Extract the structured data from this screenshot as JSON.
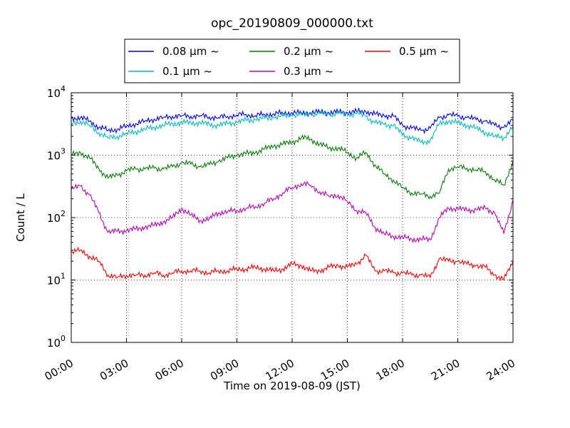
{
  "chart_data": {
    "type": "line",
    "title": "opc_20190809_000000.txt",
    "xlabel": "Time on 2019-08-09 (JST)",
    "ylabel": "Count / L",
    "y_scale": "log",
    "ylim": [
      1,
      10000
    ],
    "y_ticks": [
      {
        "value": 1,
        "base": "10",
        "exp": "0"
      },
      {
        "value": 10,
        "base": "10",
        "exp": "1"
      },
      {
        "value": 100,
        "base": "10",
        "exp": "2"
      },
      {
        "value": 1000,
        "base": "10",
        "exp": "3"
      },
      {
        "value": 10000,
        "base": "10",
        "exp": "4"
      }
    ],
    "xlim": [
      "00:00",
      "24:00"
    ],
    "x_ticks": [
      "00:00",
      "03:00",
      "06:00",
      "09:00",
      "12:00",
      "15:00",
      "18:00",
      "21:00",
      "24:00"
    ],
    "grid": true,
    "legend_position": "top-center",
    "series": [
      {
        "name": "0.08 μm ~",
        "color": "#0000ff",
        "x": [
          "00:00",
          "00:30",
          "01:00",
          "01:30",
          "02:00",
          "02:30",
          "03:00",
          "03:30",
          "04:00",
          "04:30",
          "05:00",
          "05:30",
          "06:00",
          "06:30",
          "07:00",
          "07:30",
          "08:00",
          "08:30",
          "09:00",
          "09:30",
          "10:00",
          "10:30",
          "11:00",
          "11:30",
          "12:00",
          "12:30",
          "13:00",
          "13:30",
          "14:00",
          "14:30",
          "15:00",
          "15:30",
          "16:00",
          "16:30",
          "17:00",
          "17:30",
          "18:00",
          "18:30",
          "19:00",
          "19:30",
          "20:00",
          "20:30",
          "21:00",
          "21:30",
          "22:00",
          "22:30",
          "23:00",
          "23:30",
          "24:00"
        ],
        "values": [
          3900,
          4000,
          3500,
          2800,
          2500,
          2600,
          2900,
          3200,
          3500,
          3800,
          4000,
          4200,
          4300,
          4200,
          4300,
          4100,
          4000,
          4200,
          4400,
          4500,
          4300,
          4500,
          4600,
          4700,
          4800,
          4700,
          4800,
          4900,
          4800,
          4900,
          4800,
          5000,
          5000,
          4500,
          4300,
          4200,
          3000,
          2700,
          2500,
          2700,
          4000,
          4400,
          4200,
          4000,
          3700,
          3500,
          3000,
          2800,
          3600
        ]
      },
      {
        "name": "0.1 μm ~",
        "color": "#00bfbf",
        "x": [
          "00:00",
          "00:30",
          "01:00",
          "01:30",
          "02:00",
          "02:30",
          "03:00",
          "03:30",
          "04:00",
          "04:30",
          "05:00",
          "05:30",
          "06:00",
          "06:30",
          "07:00",
          "07:30",
          "08:00",
          "08:30",
          "09:00",
          "09:30",
          "10:00",
          "10:30",
          "11:00",
          "11:30",
          "12:00",
          "12:30",
          "13:00",
          "13:30",
          "14:00",
          "14:30",
          "15:00",
          "15:30",
          "16:00",
          "16:30",
          "17:00",
          "17:30",
          "18:00",
          "18:30",
          "19:00",
          "19:30",
          "20:00",
          "20:30",
          "21:00",
          "21:30",
          "22:00",
          "22:30",
          "23:00",
          "23:30",
          "24:00"
        ],
        "values": [
          3200,
          3500,
          3000,
          2300,
          1900,
          2000,
          2200,
          2400,
          2600,
          2800,
          3000,
          3200,
          3300,
          3300,
          3300,
          3100,
          3000,
          3200,
          3400,
          3600,
          3700,
          3900,
          4000,
          4200,
          4400,
          4400,
          4500,
          4600,
          4500,
          4600,
          4500,
          4600,
          4200,
          3300,
          3100,
          3000,
          2100,
          1900,
          1600,
          1700,
          3200,
          3500,
          3300,
          3000,
          2700,
          2300,
          2000,
          1900,
          2900
        ]
      },
      {
        "name": "0.2 μm ~",
        "color": "#008000",
        "x": [
          "00:00",
          "00:30",
          "01:00",
          "01:30",
          "02:00",
          "02:30",
          "03:00",
          "03:30",
          "04:00",
          "04:30",
          "05:00",
          "05:30",
          "06:00",
          "06:30",
          "07:00",
          "07:30",
          "08:00",
          "08:30",
          "09:00",
          "09:30",
          "10:00",
          "10:30",
          "11:00",
          "11:30",
          "12:00",
          "12:30",
          "13:00",
          "13:30",
          "14:00",
          "14:30",
          "15:00",
          "15:30",
          "16:00",
          "16:30",
          "17:00",
          "17:30",
          "18:00",
          "18:30",
          "19:00",
          "19:30",
          "20:00",
          "20:30",
          "21:00",
          "21:30",
          "22:00",
          "22:30",
          "23:00",
          "23:30",
          "24:00"
        ],
        "values": [
          1000,
          1100,
          900,
          600,
          430,
          480,
          560,
          600,
          600,
          620,
          600,
          650,
          750,
          720,
          650,
          700,
          800,
          900,
          1000,
          1050,
          1100,
          1250,
          1400,
          1500,
          1600,
          1900,
          1800,
          1500,
          1300,
          1300,
          1100,
          900,
          1100,
          700,
          500,
          400,
          300,
          250,
          240,
          220,
          250,
          600,
          650,
          620,
          580,
          550,
          400,
          330,
          800
        ]
      },
      {
        "name": "0.3 μm ~",
        "color": "#bf00bf",
        "x": [
          "00:00",
          "00:30",
          "01:00",
          "01:30",
          "02:00",
          "02:30",
          "03:00",
          "03:30",
          "04:00",
          "04:30",
          "05:00",
          "05:30",
          "06:00",
          "06:30",
          "07:00",
          "07:30",
          "08:00",
          "08:30",
          "09:00",
          "09:30",
          "10:00",
          "10:30",
          "11:00",
          "11:30",
          "12:00",
          "12:30",
          "13:00",
          "13:30",
          "14:00",
          "14:30",
          "15:00",
          "15:30",
          "16:00",
          "16:30",
          "17:00",
          "17:30",
          "18:00",
          "18:30",
          "19:00",
          "19:30",
          "20:00",
          "20:30",
          "21:00",
          "21:30",
          "22:00",
          "22:30",
          "23:00",
          "23:30",
          "24:00"
        ],
        "values": [
          280,
          320,
          230,
          120,
          58,
          60,
          62,
          65,
          70,
          75,
          85,
          100,
          140,
          110,
          90,
          95,
          120,
          125,
          130,
          140,
          150,
          170,
          200,
          250,
          300,
          350,
          330,
          260,
          220,
          230,
          180,
          130,
          120,
          70,
          55,
          50,
          48,
          45,
          45,
          44,
          100,
          140,
          140,
          130,
          135,
          140,
          120,
          55,
          190
        ]
      },
      {
        "name": "0.5 μm ~",
        "color": "#ff0000",
        "x": [
          "00:00",
          "00:30",
          "01:00",
          "01:30",
          "02:00",
          "02:30",
          "03:00",
          "03:30",
          "04:00",
          "04:30",
          "05:00",
          "05:30",
          "06:00",
          "06:30",
          "07:00",
          "07:30",
          "08:00",
          "08:30",
          "09:00",
          "09:30",
          "10:00",
          "10:30",
          "11:00",
          "11:30",
          "12:00",
          "12:30",
          "13:00",
          "13:30",
          "14:00",
          "14:30",
          "15:00",
          "15:30",
          "16:00",
          "16:30",
          "17:00",
          "17:30",
          "18:00",
          "18:30",
          "19:00",
          "19:30",
          "20:00",
          "20:30",
          "21:00",
          "21:30",
          "22:00",
          "22:30",
          "23:00",
          "23:30",
          "24:00"
        ],
        "values": [
          28,
          30,
          24,
          20,
          12,
          11,
          12,
          12,
          12,
          13,
          12,
          13,
          14,
          14,
          14,
          13,
          14,
          14,
          15,
          15,
          16,
          15,
          14,
          15,
          18,
          17,
          14,
          14,
          16,
          17,
          16,
          18,
          25,
          14,
          14,
          13,
          13,
          12,
          12,
          11,
          22,
          20,
          20,
          18,
          17,
          16,
          12,
          10,
          20
        ]
      }
    ]
  }
}
